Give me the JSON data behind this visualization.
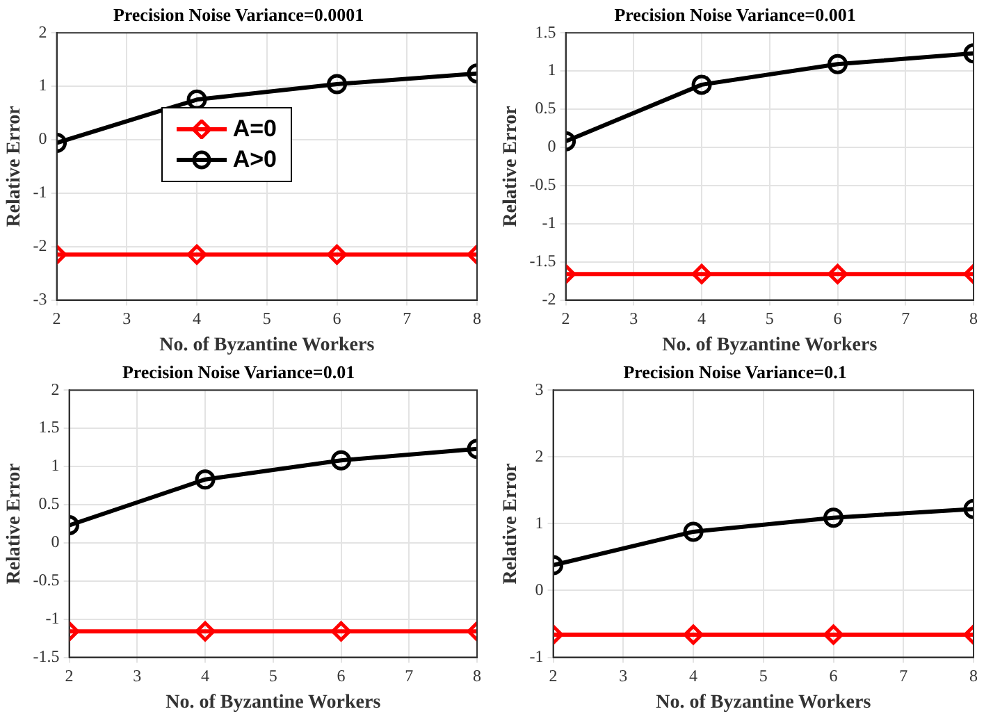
{
  "chart_data": [
    {
      "type": "line",
      "title": "Precision Noise Variance=0.0001",
      "xlabel": "No. of Byzantine Workers",
      "ylabel": "Relative Error",
      "x": [
        2,
        4,
        6,
        8
      ],
      "xlim": [
        2,
        8
      ],
      "xticks": [
        2,
        3,
        4,
        5,
        6,
        7,
        8
      ],
      "ylim": [
        -3,
        2
      ],
      "yticks": [
        -3,
        -2,
        -1,
        0,
        1,
        2
      ],
      "grid": true,
      "legend": "left",
      "series": [
        {
          "name": "A=0",
          "color": "#ff0000",
          "marker": "diamond",
          "values": [
            -2.15,
            -2.15,
            -2.15,
            -2.15
          ]
        },
        {
          "name": "A>0",
          "color": "#000000",
          "marker": "circle",
          "values": [
            -0.06,
            0.75,
            1.04,
            1.24
          ]
        }
      ]
    },
    {
      "type": "line",
      "title": "Precision Noise Variance=0.001",
      "xlabel": "No. of Byzantine Workers",
      "ylabel": "Relative Error",
      "x": [
        2,
        4,
        6,
        8
      ],
      "xlim": [
        2,
        8
      ],
      "xticks": [
        2,
        3,
        4,
        5,
        6,
        7,
        8
      ],
      "ylim": [
        -2,
        1.5
      ],
      "yticks": [
        -2,
        -1.5,
        -1,
        -0.5,
        0,
        0.5,
        1,
        1.5
      ],
      "grid": true,
      "series": [
        {
          "color": "#ff0000",
          "marker": "diamond",
          "values": [
            -1.66,
            -1.66,
            -1.66,
            -1.66
          ]
        },
        {
          "color": "#000000",
          "marker": "circle",
          "values": [
            0.08,
            0.82,
            1.09,
            1.23
          ]
        }
      ]
    },
    {
      "type": "line",
      "title": "Precision Noise Variance=0.01",
      "xlabel": "No. of Byzantine Workers",
      "ylabel": "Relative Error",
      "x": [
        2,
        4,
        6,
        8
      ],
      "xlim": [
        2,
        8
      ],
      "xticks": [
        2,
        3,
        4,
        5,
        6,
        7,
        8
      ],
      "ylim": [
        -1.5,
        2
      ],
      "yticks": [
        -1.5,
        -1,
        -0.5,
        0,
        0.5,
        1,
        1.5,
        2
      ],
      "grid": true,
      "series": [
        {
          "color": "#ff0000",
          "marker": "diamond",
          "values": [
            -1.16,
            -1.16,
            -1.16,
            -1.16
          ]
        },
        {
          "color": "#000000",
          "marker": "circle",
          "values": [
            0.23,
            0.83,
            1.08,
            1.23
          ]
        }
      ]
    },
    {
      "type": "line",
      "title": "Precision Noise Variance=0.1",
      "xlabel": "No. of Byzantine Workers",
      "ylabel": "Relative Error",
      "x": [
        2,
        4,
        6,
        8
      ],
      "xlim": [
        2,
        8
      ],
      "xticks": [
        2,
        3,
        4,
        5,
        6,
        7,
        8
      ],
      "ylim": [
        -1,
        3
      ],
      "yticks": [
        -1,
        0,
        1,
        2,
        3
      ],
      "grid": true,
      "series": [
        {
          "color": "#ff0000",
          "marker": "diamond",
          "values": [
            -0.66,
            -0.66,
            -0.66,
            -0.66
          ]
        },
        {
          "color": "#000000",
          "marker": "circle",
          "values": [
            0.38,
            0.88,
            1.09,
            1.22
          ]
        }
      ]
    }
  ]
}
